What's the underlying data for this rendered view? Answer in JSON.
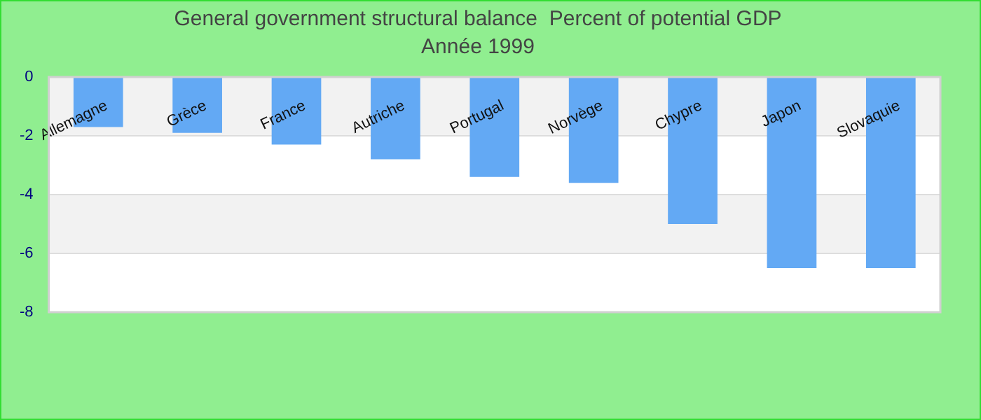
{
  "chart_data": {
    "type": "bar",
    "title": "General government structural balance  Percent of potential GDP",
    "subtitle": "Année 1999",
    "categories": [
      "Allemagne",
      "Grèce",
      "France",
      "Autriche",
      "Portugal",
      "Norvège",
      "Chypre",
      "Japon",
      "Slovaquie"
    ],
    "values": [
      -1.7,
      -1.9,
      -2.3,
      -2.8,
      -3.4,
      -3.6,
      -5.0,
      -6.5,
      -6.5
    ],
    "color": "#63a9f4",
    "ylim": [
      -8,
      0
    ],
    "yticks": [
      0,
      -2,
      -4,
      -6,
      -8
    ],
    "grid": "y",
    "legend": false
  }
}
